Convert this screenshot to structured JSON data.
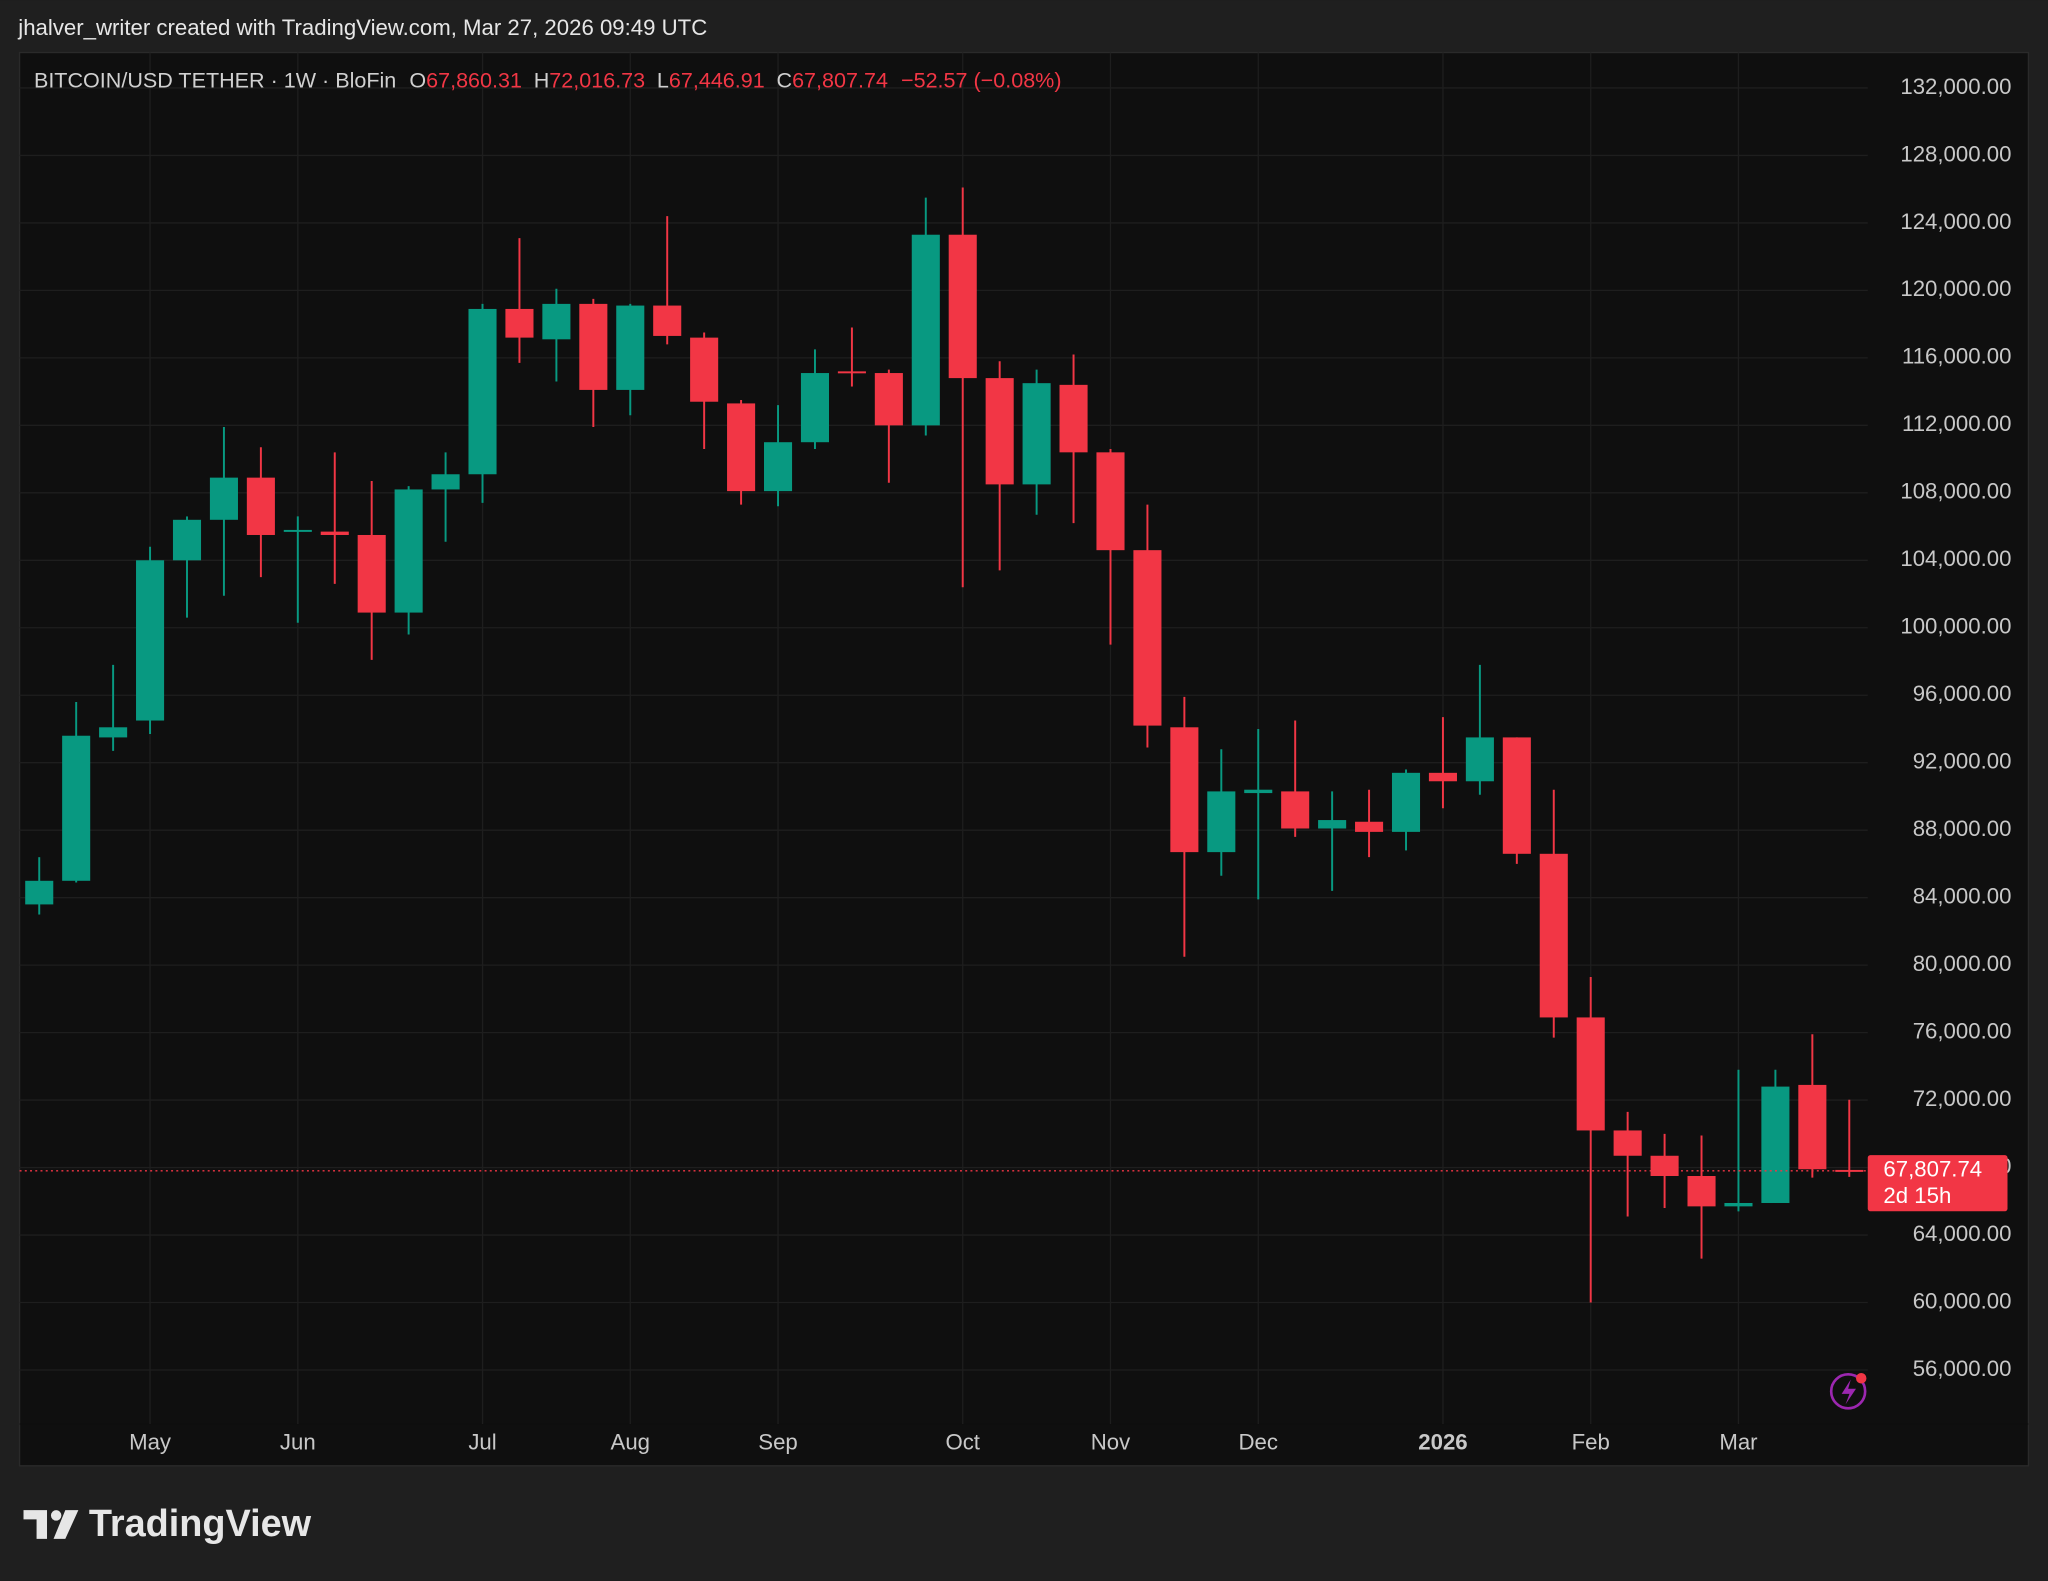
{
  "header": "jhalver_writer created with TradingView.com, Mar 27, 2026 09:49 UTC",
  "footer": "TradingView",
  "chart_data": {
    "type": "candlestick",
    "legend": {
      "symbol": "BITCOIN/USD TETHER · 1W · BloFin",
      "fields": [
        {
          "key": "O",
          "value": "67,860.31"
        },
        {
          "key": "H",
          "value": "72,016.73"
        },
        {
          "key": "L",
          "value": "67,446.91"
        },
        {
          "key": "C",
          "value": "67,807.74"
        }
      ],
      "change": "−52.57 (−0.08%)"
    },
    "categories": [
      null,
      null,
      null,
      "May",
      null,
      null,
      null,
      "Jun",
      null,
      null,
      null,
      null,
      "Jul",
      null,
      null,
      null,
      "Aug",
      null,
      null,
      null,
      "Sep",
      null,
      null,
      null,
      null,
      "Oct",
      null,
      null,
      null,
      "Nov",
      null,
      null,
      null,
      "Dec",
      null,
      null,
      null,
      null,
      "2026",
      null,
      null,
      null,
      "Feb",
      null,
      null,
      null,
      "Mar",
      null,
      null,
      null
    ],
    "open": [
      83600,
      85000,
      93500,
      94500,
      104000,
      106400,
      108900,
      105700,
      105700,
      105500,
      100900,
      108200,
      109100,
      118900,
      117100,
      119200,
      114100,
      119100,
      117200,
      113300,
      108100,
      111000,
      115200,
      115100,
      112000,
      123300,
      114800,
      108500,
      114400,
      110400,
      104600,
      94100,
      86700,
      90200,
      90300,
      88100,
      88500,
      87900,
      91400,
      90900,
      93500,
      86600,
      76900,
      70200,
      68700,
      67500,
      65700,
      65900,
      72900,
      67860.31
    ],
    "high": [
      86400,
      95600,
      97800,
      104800,
      106600,
      111900,
      110700,
      106600,
      110400,
      108700,
      108400,
      110400,
      119200,
      123100,
      120100,
      119500,
      119200,
      124400,
      117500,
      113500,
      113200,
      116500,
      117800,
      115300,
      125500,
      126100,
      115800,
      115300,
      116200,
      110600,
      107300,
      95900,
      92800,
      94000,
      94500,
      90300,
      90400,
      91600,
      94700,
      97800,
      93500,
      90400,
      79300,
      71300,
      70000,
      69900,
      73800,
      73800,
      75900,
      72016.73
    ],
    "low": [
      83000,
      84900,
      92700,
      93700,
      100600,
      101900,
      103000,
      100300,
      102600,
      98100,
      99600,
      105100,
      107400,
      115700,
      114600,
      111900,
      112600,
      116800,
      110600,
      107300,
      107200,
      110600,
      114300,
      108600,
      111400,
      102400,
      103400,
      106700,
      106200,
      99000,
      92900,
      80500,
      85300,
      83900,
      87600,
      84400,
      86400,
      86800,
      89300,
      90100,
      86000,
      75700,
      60000,
      65100,
      65600,
      62600,
      65400,
      65900,
      67400,
      67446.91
    ],
    "close": [
      85000,
      93600,
      94100,
      104000,
      106400,
      108900,
      105500,
      105800,
      105500,
      100900,
      108200,
      109100,
      118900,
      117200,
      119200,
      114100,
      119100,
      117300,
      113400,
      108100,
      111000,
      115100,
      115100,
      112000,
      123300,
      114800,
      108500,
      114500,
      110400,
      104600,
      94200,
      86700,
      90300,
      90400,
      88100,
      88600,
      87900,
      91400,
      90900,
      93500,
      86600,
      76900,
      70200,
      68700,
      67500,
      65700,
      65900,
      72800,
      67900,
      67807.74
    ],
    "up_color": "#089981",
    "down_color": "#f23645",
    "ylim": [
      52800,
      134100
    ],
    "yticks": [
      {
        "value": 56000,
        "label": "56,000.00"
      },
      {
        "value": 60000,
        "label": "60,000.00"
      },
      {
        "value": 64000,
        "label": "64,000.00"
      },
      {
        "value": 68000,
        "label": "68,000.00"
      },
      {
        "value": 72000,
        "label": "72,000.00"
      },
      {
        "value": 76000,
        "label": "76,000.00"
      },
      {
        "value": 80000,
        "label": "80,000.00"
      },
      {
        "value": 84000,
        "label": "84,000.00"
      },
      {
        "value": 88000,
        "label": "88,000.00"
      },
      {
        "value": 92000,
        "label": "92,000.00"
      },
      {
        "value": 96000,
        "label": "96,000.00"
      },
      {
        "value": 100000,
        "label": "100,000.00"
      },
      {
        "value": 104000,
        "label": "104,000.00"
      },
      {
        "value": 108000,
        "label": "108,000.00"
      },
      {
        "value": 112000,
        "label": "112,000.00"
      },
      {
        "value": 116000,
        "label": "116,000.00"
      },
      {
        "value": 120000,
        "label": "120,000.00"
      },
      {
        "value": 124000,
        "label": "124,000.00"
      },
      {
        "value": 128000,
        "label": "128,000.00"
      },
      {
        "value": 132000,
        "label": "132,000.00"
      }
    ],
    "grid": true,
    "last_price_label": "67,807.74",
    "countdown": "2d 15h"
  }
}
